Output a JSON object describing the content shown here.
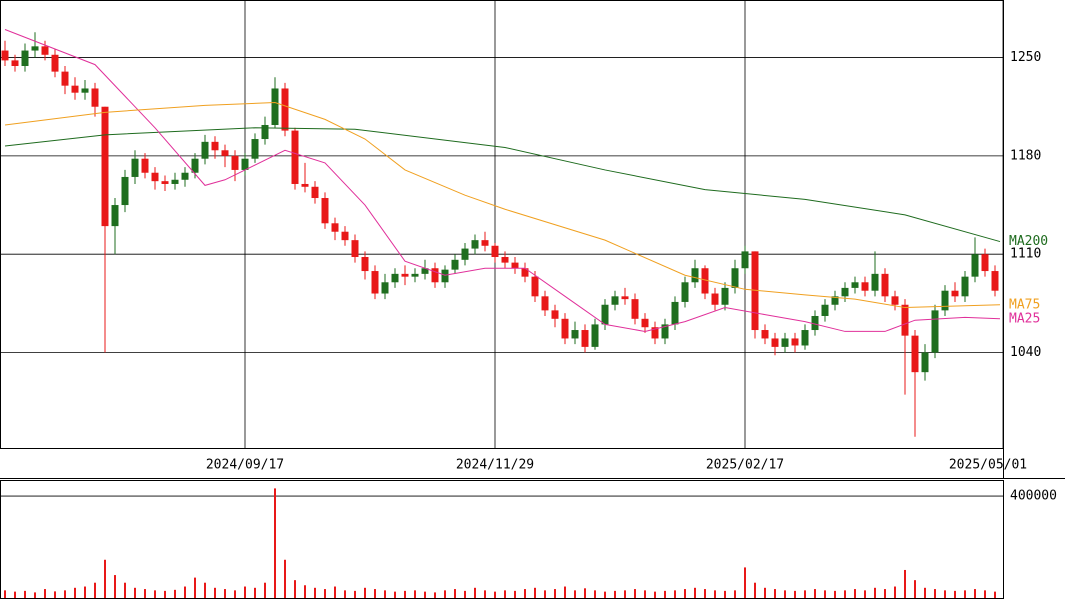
{
  "chart_data": [
    {
      "type": "candlestick",
      "xlim": [
        -0.5,
        99.8
      ],
      "xticks": [
        {
          "value": 24,
          "label": "2024/09/17"
        },
        {
          "value": 49,
          "label": "2024/11/29"
        },
        {
          "value": 74,
          "label": "2025/02/17"
        },
        {
          "value": 99.8,
          "label": "2025/05/01"
        }
      ],
      "ylim": [
        972,
        1291
      ],
      "yticks": [
        1040,
        1110,
        1180,
        1250
      ],
      "grid": true,
      "up_color": "#1f6e1f",
      "down_color": "#e81818",
      "open": [
        1255,
        1248,
        1244,
        1255,
        1258,
        1252,
        1240,
        1230,
        1225,
        1228,
        1215,
        1130,
        1145,
        1165,
        1178,
        1168,
        1162,
        1160,
        1163,
        1168,
        1178,
        1190,
        1184,
        1180,
        1170,
        1178,
        1192,
        1202,
        1228,
        1198,
        1160,
        1158,
        1150,
        1132,
        1126,
        1120,
        1108,
        1098,
        1082,
        1090,
        1096,
        1094,
        1096,
        1100,
        1090,
        1099,
        1106,
        1114,
        1120,
        1116,
        1108,
        1104,
        1100,
        1094,
        1080,
        1070,
        1064,
        1050,
        1056,
        1044,
        1060,
        1074,
        1080,
        1078,
        1064,
        1058,
        1050,
        1060,
        1076,
        1090,
        1100,
        1082,
        1074,
        1086,
        1100,
        1112,
        1056,
        1050,
        1044,
        1050,
        1045,
        1056,
        1066,
        1074,
        1080,
        1086,
        1090,
        1084,
        1096,
        1080,
        1074,
        1052,
        1026,
        1040,
        1070,
        1084,
        1080,
        1094,
        1110,
        1098
      ],
      "high": [
        1262,
        1252,
        1260,
        1268,
        1262,
        1256,
        1244,
        1236,
        1234,
        1232,
        1215,
        1150,
        1170,
        1184,
        1182,
        1172,
        1166,
        1168,
        1172,
        1182,
        1195,
        1194,
        1188,
        1184,
        1182,
        1196,
        1208,
        1236,
        1232,
        1200,
        1175,
        1162,
        1154,
        1136,
        1130,
        1124,
        1112,
        1102,
        1096,
        1100,
        1102,
        1100,
        1106,
        1104,
        1102,
        1110,
        1118,
        1124,
        1126,
        1118,
        1112,
        1108,
        1104,
        1098,
        1084,
        1074,
        1068,
        1062,
        1060,
        1064,
        1078,
        1084,
        1086,
        1082,
        1068,
        1062,
        1064,
        1080,
        1094,
        1106,
        1102,
        1086,
        1090,
        1106,
        1116,
        1112,
        1060,
        1054,
        1054,
        1054,
        1060,
        1070,
        1078,
        1084,
        1090,
        1094,
        1094,
        1112,
        1100,
        1084,
        1078,
        1056,
        1046,
        1074,
        1088,
        1090,
        1098,
        1122,
        1114,
        1102
      ],
      "low": [
        1244,
        1240,
        1240,
        1250,
        1248,
        1236,
        1224,
        1220,
        1220,
        1208,
        1040,
        1110,
        1140,
        1160,
        1164,
        1156,
        1155,
        1156,
        1158,
        1164,
        1174,
        1178,
        1172,
        1162,
        1166,
        1175,
        1188,
        1200,
        1194,
        1156,
        1154,
        1146,
        1128,
        1120,
        1116,
        1104,
        1092,
        1078,
        1078,
        1086,
        1088,
        1090,
        1092,
        1086,
        1086,
        1096,
        1102,
        1110,
        1112,
        1104,
        1100,
        1096,
        1090,
        1076,
        1066,
        1058,
        1046,
        1046,
        1040,
        1042,
        1056,
        1070,
        1074,
        1060,
        1054,
        1046,
        1046,
        1056,
        1072,
        1086,
        1078,
        1070,
        1070,
        1082,
        1096,
        1050,
        1046,
        1038,
        1040,
        1040,
        1042,
        1052,
        1062,
        1070,
        1076,
        1082,
        1080,
        1080,
        1076,
        1070,
        1010,
        980,
        1020,
        1036,
        1066,
        1076,
        1076,
        1090,
        1094,
        1080
      ],
      "close": [
        1248,
        1244,
        1255,
        1258,
        1252,
        1240,
        1230,
        1225,
        1228,
        1215,
        1130,
        1145,
        1165,
        1178,
        1168,
        1162,
        1160,
        1163,
        1168,
        1178,
        1190,
        1184,
        1180,
        1170,
        1178,
        1192,
        1202,
        1228,
        1198,
        1160,
        1158,
        1150,
        1132,
        1126,
        1120,
        1108,
        1098,
        1082,
        1090,
        1096,
        1094,
        1096,
        1100,
        1090,
        1099,
        1106,
        1114,
        1120,
        1116,
        1108,
        1104,
        1100,
        1094,
        1080,
        1070,
        1064,
        1050,
        1056,
        1044,
        1060,
        1074,
        1080,
        1078,
        1064,
        1058,
        1050,
        1060,
        1076,
        1090,
        1100,
        1082,
        1074,
        1086,
        1100,
        1112,
        1056,
        1050,
        1044,
        1050,
        1045,
        1056,
        1066,
        1074,
        1080,
        1086,
        1090,
        1084,
        1096,
        1080,
        1074,
        1052,
        1026,
        1040,
        1070,
        1084,
        1080,
        1094,
        1110,
        1098,
        1084
      ],
      "series": [
        {
          "name": "MA200",
          "color": "#1e6b1e",
          "x": [
            0,
            10,
            25,
            35,
            50,
            60,
            70,
            80,
            90,
            99.5
          ],
          "values": [
            1187,
            1195,
            1200,
            1199,
            1186,
            1170,
            1156,
            1149,
            1138,
            1119
          ]
        },
        {
          "name": "MA25",
          "color": "#e0309a",
          "x": [
            0,
            9,
            15,
            20,
            22,
            28,
            32,
            36,
            40,
            44,
            48,
            52,
            56,
            60,
            64,
            68,
            72,
            76,
            80,
            84,
            88,
            91,
            96,
            99.5
          ],
          "values": [
            1270,
            1245,
            1200,
            1159,
            1163,
            1184,
            1175,
            1145,
            1105,
            1095,
            1100,
            1100,
            1080,
            1060,
            1055,
            1062,
            1072,
            1067,
            1062,
            1055,
            1055,
            1063,
            1065,
            1064
          ]
        },
        {
          "name": "MA75",
          "color": "#f0a020",
          "x": [
            0,
            10,
            20,
            27,
            32,
            36,
            40,
            46,
            50,
            60,
            68,
            74,
            80,
            85,
            90,
            99.5
          ],
          "values": [
            1202,
            1211,
            1216,
            1218,
            1206,
            1192,
            1170,
            1152,
            1142,
            1120,
            1095,
            1085,
            1081,
            1078,
            1072,
            1074
          ]
        }
      ]
    },
    {
      "type": "bar",
      "color": "#e81818",
      "ylim": [
        0,
        463000
      ],
      "yticks": [
        400000
      ],
      "values": [
        30000,
        25000,
        28000,
        22000,
        35000,
        26000,
        30000,
        40000,
        45000,
        60000,
        150000,
        90000,
        60000,
        40000,
        35000,
        30000,
        28000,
        32000,
        45000,
        80000,
        60000,
        40000,
        35000,
        30000,
        45000,
        40000,
        60000,
        430000,
        150000,
        70000,
        50000,
        40000,
        35000,
        45000,
        30000,
        28000,
        40000,
        35000,
        30000,
        25000,
        28000,
        30000,
        25000,
        22000,
        30000,
        35000,
        28000,
        40000,
        30000,
        25000,
        30000,
        28000,
        35000,
        40000,
        30000,
        35000,
        45000,
        30000,
        38000,
        30000,
        25000,
        28000,
        30000,
        35000,
        30000,
        25000,
        28000,
        30000,
        35000,
        40000,
        35000,
        30000,
        28000,
        30000,
        120000,
        60000,
        40000,
        35000,
        30000,
        28000,
        30000,
        35000,
        30000,
        28000,
        30000,
        35000,
        30000,
        40000,
        35000,
        45000,
        110000,
        70000,
        40000,
        35000,
        30000,
        28000,
        30000,
        35000,
        30000,
        25000
      ]
    }
  ]
}
